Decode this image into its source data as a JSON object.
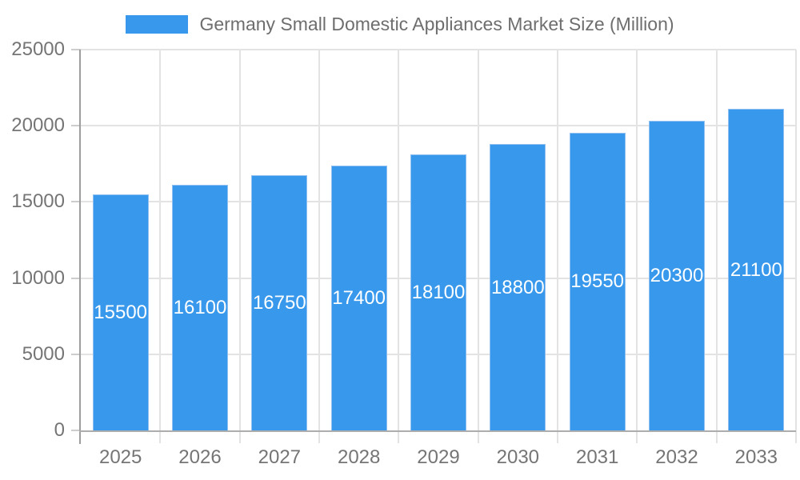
{
  "chart_data": {
    "type": "bar",
    "title": "Germany Small Domestic Appliances Market Size (Million)",
    "categories": [
      "2025",
      "2026",
      "2027",
      "2028",
      "2029",
      "2030",
      "2031",
      "2032",
      "2033"
    ],
    "values": [
      15500,
      16100,
      16750,
      17400,
      18100,
      18800,
      19550,
      20300,
      21100
    ],
    "bar_labels": [
      "15500",
      "16100",
      "16750",
      "17400",
      "18100",
      "18800",
      "19550",
      "20300",
      "21100"
    ],
    "ylim": [
      0,
      25000
    ],
    "ytick_step": 5000,
    "ytick_labels": [
      "0",
      "5000",
      "10000",
      "15000",
      "20000",
      "25000"
    ],
    "grid": true,
    "legend_position": "top",
    "xlabel": "",
    "ylabel": ""
  },
  "colors": {
    "bar": "#3898EC",
    "bar_value_text": "#FFFFFF",
    "axis_labels": "#757575",
    "legend_text": "#6E6E6E",
    "gridline": "#E3E3E3",
    "y_axis_line": "#9E9E9E",
    "x_axis_line": "#ADADAD",
    "tick": "#CDCDCD",
    "background": "#FFFFFF"
  }
}
